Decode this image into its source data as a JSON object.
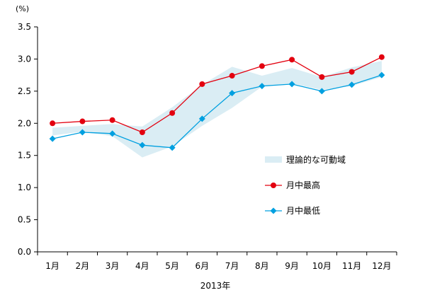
{
  "chart_data": {
    "type": "line",
    "unit_label": "(%)",
    "xlabel": "2013年",
    "categories": [
      "1月",
      "2月",
      "3月",
      "4月",
      "5月",
      "6月",
      "7月",
      "8月",
      "9月",
      "10月",
      "11月",
      "12月"
    ],
    "ylim": [
      0,
      3.5
    ],
    "yticks": [
      "0.0",
      "0.5",
      "1.0",
      "1.5",
      "2.0",
      "2.5",
      "3.0",
      "3.5"
    ],
    "grid": false,
    "legend_position": "right-middle",
    "band": {
      "name": "理論的な可動域",
      "color": "#daedf4",
      "upper": [
        1.93,
        1.96,
        1.99,
        1.95,
        2.25,
        2.6,
        2.88,
        2.74,
        2.86,
        2.72,
        2.87,
        2.97
      ],
      "lower": [
        1.81,
        1.87,
        1.8,
        1.47,
        1.64,
        1.96,
        2.24,
        2.57,
        2.62,
        2.52,
        2.58,
        2.72
      ]
    },
    "series": [
      {
        "name": "月中最高",
        "color": "#e3000f",
        "marker": "circle",
        "values": [
          2.0,
          2.03,
          2.05,
          1.86,
          2.16,
          2.61,
          2.74,
          2.89,
          2.99,
          2.72,
          2.8,
          3.03
        ]
      },
      {
        "name": "月中最低",
        "color": "#00a0e0",
        "marker": "diamond",
        "values": [
          1.76,
          1.86,
          1.84,
          1.66,
          1.62,
          2.07,
          2.47,
          2.58,
          2.61,
          2.5,
          2.6,
          2.75
        ]
      }
    ]
  }
}
